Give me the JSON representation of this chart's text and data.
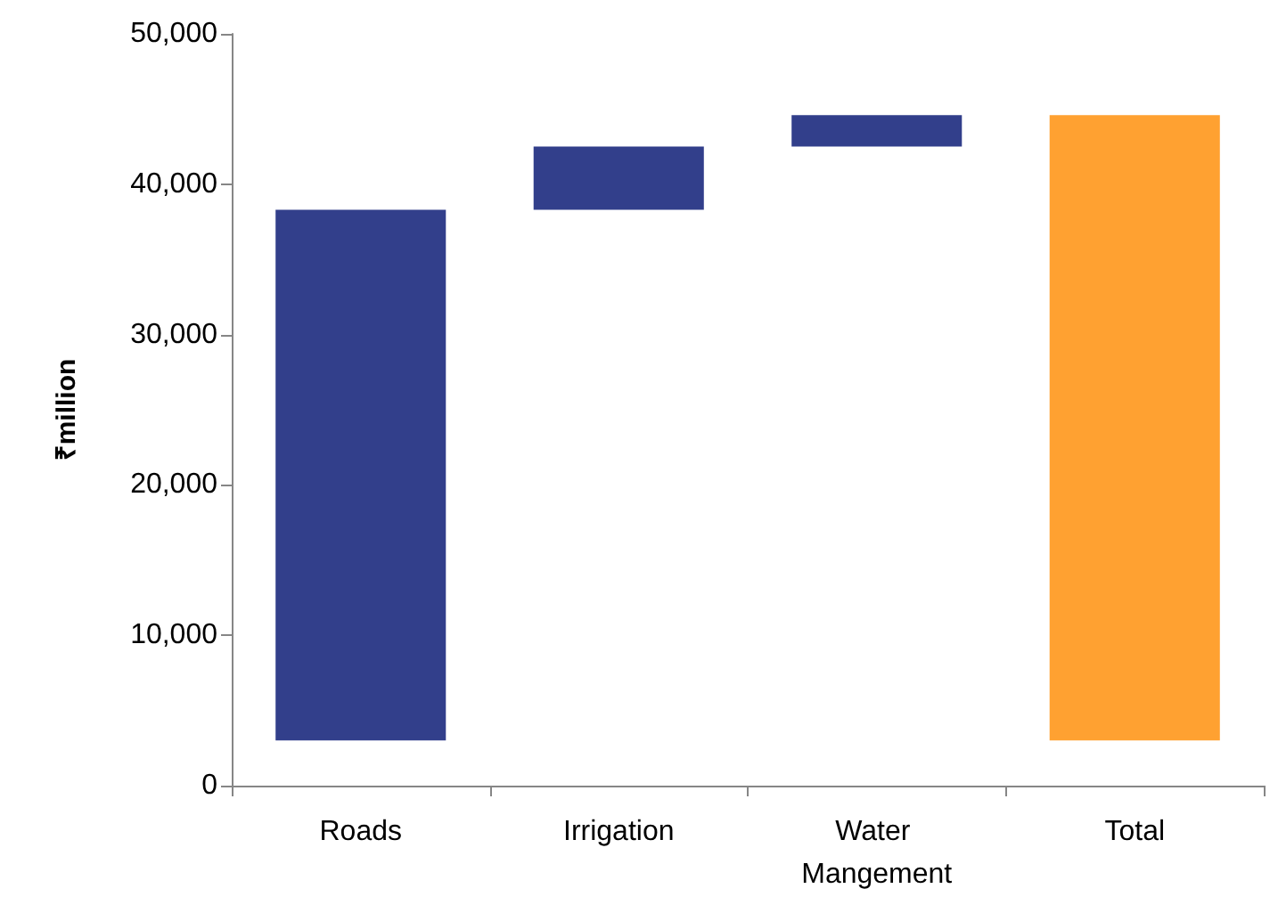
{
  "chart_data": {
    "type": "bar",
    "ylabel": "₹million",
    "categories": [
      "Roads",
      "Irrigation",
      "Water Mangement",
      "Total"
    ],
    "base": [
      3000,
      38300,
      42500,
      3000
    ],
    "values": [
      35300,
      4200,
      2100,
      41600
    ],
    "colors": [
      "#323f8b",
      "#323f8b",
      "#323f8b",
      "#ffa131"
    ],
    "ylim": [
      0,
      50000
    ],
    "yticks": [
      0,
      {
        "value": 10000,
        "label": "10,000"
      },
      {
        "value": 20000,
        "label": "20,000"
      },
      {
        "value": 30000,
        "label": "30,000"
      },
      {
        "value": 40000,
        "label": "40,000"
      },
      {
        "value": 50000,
        "label": "50,000"
      }
    ],
    "grid": false
  }
}
